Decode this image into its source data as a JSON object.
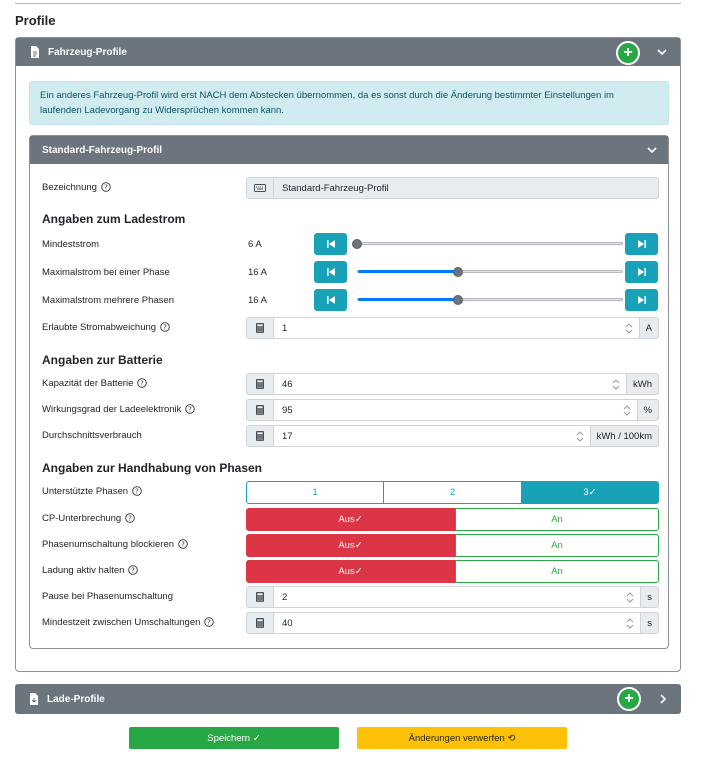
{
  "page": {
    "title": "Profile"
  },
  "vehicle_card": {
    "title": "Fahrzeug-Profile",
    "add_icon": "plus-circle-icon",
    "toggle_icon": "chevron-down-icon",
    "alert": "Ein anderes Fahrzeug-Profil wird erst NACH dem Abstecken übernommen, da es sonst durch die Änderung bestimmter Einstellungen im laufenden Ladevorgang zu Widersprüchen kommen kann."
  },
  "standard_profile": {
    "title": "Standard-Fahrzeug-Profil",
    "name_label": "Bezeichnung",
    "name_value": "Standard-Fahrzeug-Profil",
    "current_section": "Angaben zum Ladestrom",
    "min_current": {
      "label": "Mindeststrom",
      "value": "6 A",
      "level": 0.0
    },
    "max_current_one": {
      "label": "Maximalstrom bei einer Phase",
      "value": "16 A",
      "level": 0.38
    },
    "max_current_multi": {
      "label": "Maximalstrom mehrere Phasen",
      "value": "16 A",
      "level": 0.38
    },
    "deviation": {
      "label": "Erlaubte Stromabweichung",
      "value": "1",
      "unit": "A"
    },
    "battery_section": "Angaben zur Batterie",
    "capacity": {
      "label": "Kapazität der Batterie",
      "value": "46",
      "unit": "kWh"
    },
    "efficiency": {
      "label": "Wirkungsgrad der Ladeelektronik",
      "value": "95",
      "unit": "%"
    },
    "consumption": {
      "label": "Durchschnittsverbrauch",
      "value": "17",
      "unit": "kWh / 100km"
    },
    "phase_section": "Angaben zur Handhabung von Phasen",
    "phases": {
      "label": "Unterstützte Phasen",
      "options": [
        "1",
        "2",
        "3✓"
      ],
      "selected": "3"
    },
    "cp_interrupt": {
      "label": "CP-Unterbrechung",
      "off": "Aus✓",
      "on": "An"
    },
    "phase_switch_block": {
      "label": "Phasenumschaltung blockieren",
      "off": "Aus✓",
      "on": "An"
    },
    "keep_charging": {
      "label": "Ladung aktiv halten",
      "off": "Aus✓",
      "on": "An"
    },
    "pause_switch": {
      "label": "Pause bei Phasenumschaltung",
      "value": "2",
      "unit": "s"
    },
    "min_time_switch": {
      "label": "Mindestzeit zwischen Umschaltungen",
      "value": "40",
      "unit": "s"
    }
  },
  "charge_card": {
    "title": "Lade-Profile",
    "toggle_icon": "chevron-right-icon"
  },
  "actions": {
    "save": "Speichern ✓",
    "discard": "Änderungen verwerfen ⟲"
  },
  "colors": {
    "header": "#6c757d",
    "info": "#17a2b8",
    "danger": "#dc3545",
    "success": "#28a745",
    "warning": "#ffc107"
  }
}
